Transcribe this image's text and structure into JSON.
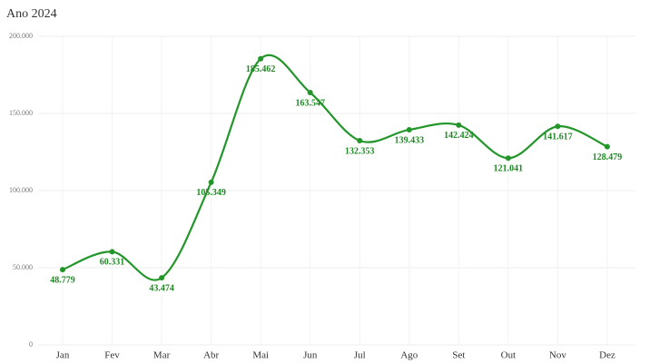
{
  "chart_data": {
    "type": "line",
    "subtitle": "Ano 2024",
    "categories": [
      "Jan",
      "Fev",
      "Mar",
      "Abr",
      "Mai",
      "Jun",
      "Jul",
      "Ago",
      "Set",
      "Out",
      "Nov",
      "Dez"
    ],
    "series": [
      {
        "name": null,
        "color": "#23962a",
        "values": [
          48779,
          60331,
          43474,
          105349,
          185462,
          163547,
          132353,
          139433,
          142424,
          121041,
          141617,
          128479
        ],
        "value_labels": [
          "48.779",
          "60.331",
          "43.474",
          "105.349",
          "185.462",
          "163.547",
          "132.353",
          "139.433",
          "142.424",
          "121.041",
          "141.617",
          "128.479"
        ]
      }
    ],
    "ylim": [
      0,
      200000
    ],
    "yticks": [
      0,
      {
        "value": 50000,
        "label": "50.000"
      },
      {
        "value": 100000,
        "label": "100.000"
      },
      {
        "value": 150000,
        "label": "150.000"
      },
      {
        "value": 200000,
        "label": "200.000"
      }
    ],
    "grid": true
  }
}
